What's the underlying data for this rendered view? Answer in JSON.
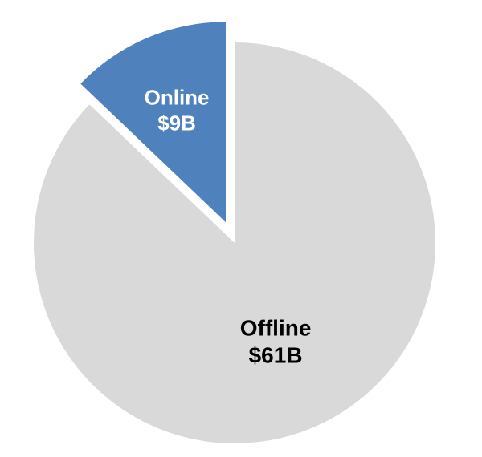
{
  "chart_data": {
    "type": "pie",
    "slices": [
      {
        "label": "Offline",
        "value_label": "$61B",
        "value": 61,
        "color": "#d9d9d9"
      },
      {
        "label": "Online",
        "value_label": "$9B",
        "value": 9,
        "color": "#4f81bd",
        "exploded": true
      }
    ]
  }
}
